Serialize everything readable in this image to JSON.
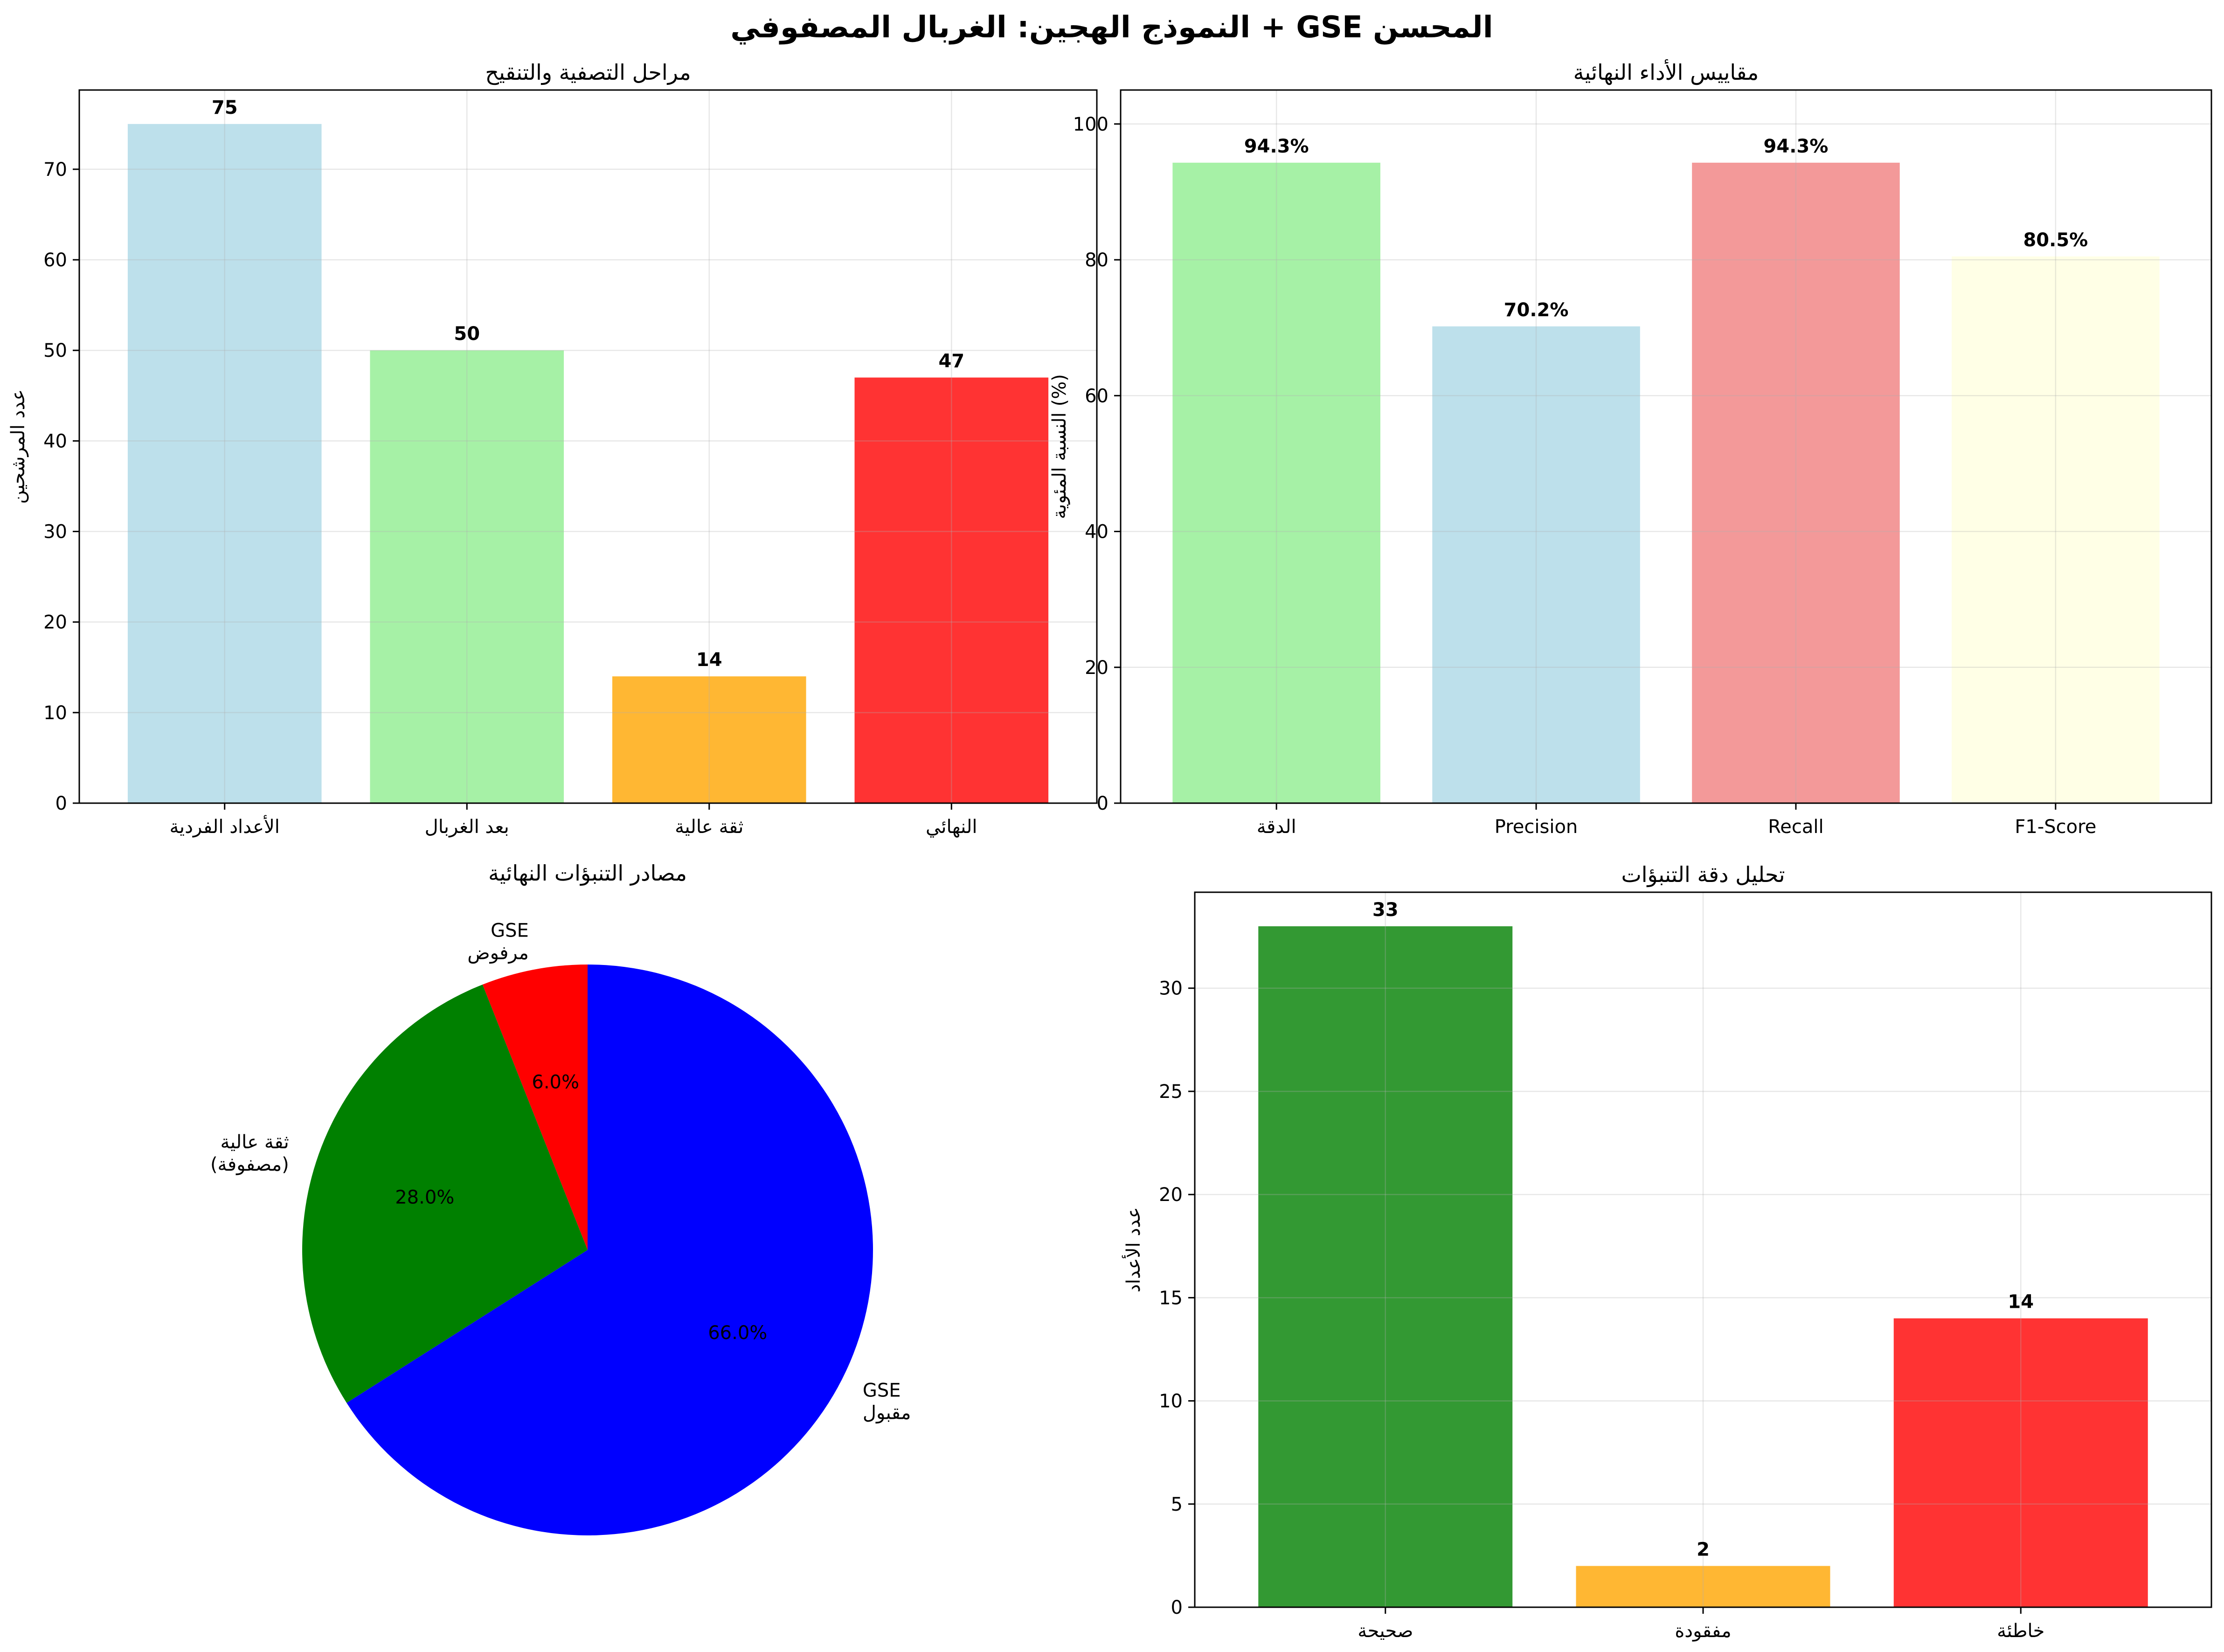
{
  "title": "النموذج الهجين: الغربال المصفوفي + GSE المحسن",
  "chart_data": [
    {
      "type": "bar",
      "title": "مراحل التصفية والتنقيح",
      "xlabel": "",
      "ylabel": "عدد المرشحين",
      "categories": [
        "الأعداد الفردية",
        "بعد الغربال",
        "ثقة عالية",
        "النهائي"
      ],
      "values": [
        75,
        50,
        14,
        47
      ],
      "value_labels": [
        "75",
        "50",
        "14",
        "47"
      ],
      "colors": [
        "#add8e6",
        "#90ee90",
        "#ffa500",
        "#ff0000"
      ],
      "ylim": [
        0,
        78.75
      ],
      "yticks": [
        0,
        10,
        20,
        30,
        40,
        50,
        60,
        70
      ],
      "grid": true
    },
    {
      "type": "bar",
      "title": "مقاييس الأداء النهائية",
      "xlabel": "",
      "ylabel": "النسبة المئوية (%)",
      "categories": [
        "الدقة",
        "Precision",
        "Recall",
        "F1-Score"
      ],
      "values": [
        94.3,
        70.2,
        94.3,
        80.5
      ],
      "value_labels": [
        "94.3%",
        "70.2%",
        "94.3%",
        "80.5%"
      ],
      "colors": [
        "#90ee90",
        "#add8e6",
        "#f08080",
        "#ffffe0"
      ],
      "ylim": [
        0,
        105
      ],
      "yticks": [
        0,
        20,
        40,
        60,
        80,
        100
      ],
      "grid": true
    },
    {
      "type": "pie",
      "title": "مصادر التنبؤات النهائية",
      "slices": [
        {
          "label": [
            "GSE",
            "مرفوض"
          ],
          "value": 6.0,
          "pct": "6.0%",
          "color": "#ff0000"
        },
        {
          "label": [
            "ثقة عالية",
            "(مصفوفة)"
          ],
          "value": 28.0,
          "pct": "28.0%",
          "color": "#008000"
        },
        {
          "label": [
            "GSE",
            "مقبول"
          ],
          "value": 66.0,
          "pct": "66.0%",
          "color": "#0000ff"
        }
      ]
    },
    {
      "type": "bar",
      "title": "تحليل دقة التنبؤات",
      "xlabel": "",
      "ylabel": "عدد الأعداد",
      "categories": [
        "صحيحة",
        "مفقودة",
        "خاطئة"
      ],
      "values": [
        33,
        2,
        14
      ],
      "value_labels": [
        "33",
        "2",
        "14"
      ],
      "colors": [
        "#008000",
        "#ffa500",
        "#ff0000"
      ],
      "ylim": [
        0,
        34.65
      ],
      "yticks": [
        0,
        5,
        10,
        15,
        20,
        25,
        30
      ],
      "grid": true
    }
  ]
}
